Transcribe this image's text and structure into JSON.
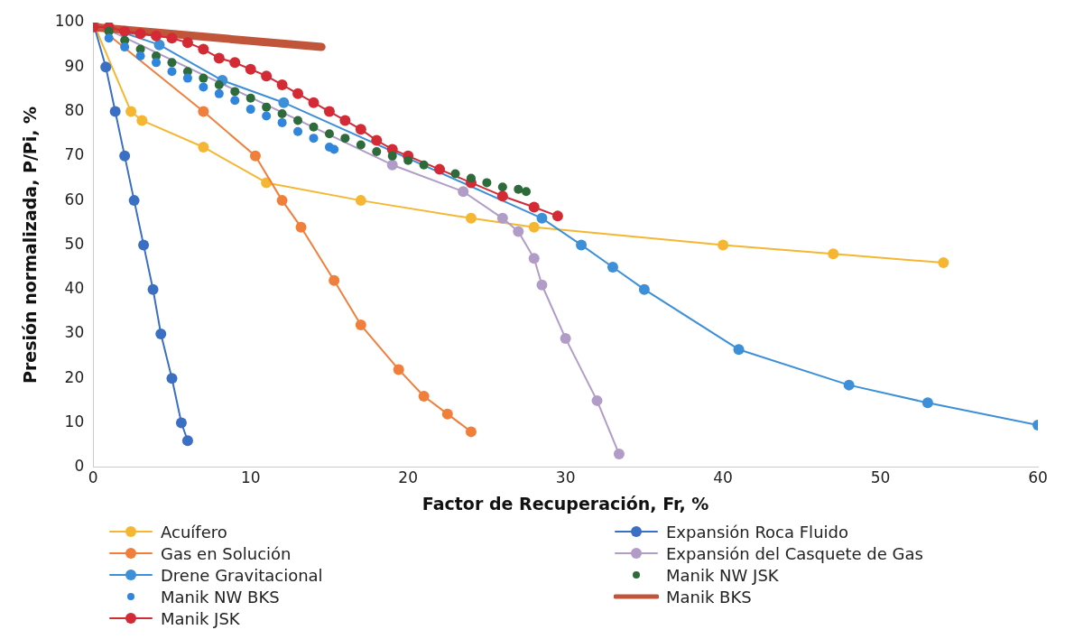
{
  "chart_data": {
    "type": "line",
    "xlabel": "Factor de Recuperación, Fr, %",
    "ylabel": "Presión normalizada, P/Pi, %",
    "xlim": [
      0,
      60
    ],
    "xticks": [
      0,
      10,
      20,
      30,
      40,
      50,
      60
    ],
    "ylim": [
      0,
      100
    ],
    "yticks": [
      0,
      10,
      20,
      30,
      40,
      50,
      60,
      70,
      80,
      90,
      100
    ],
    "grid": false,
    "legend": "bottom",
    "marker": "circle",
    "series": [
      {
        "name": "Acuífero",
        "color": "#f5b731",
        "x": [
          0,
          2.4,
          3.1,
          7,
          11,
          17,
          24,
          28,
          40,
          47,
          54
        ],
        "values": [
          100,
          80,
          78,
          72,
          64,
          60,
          56,
          54,
          50,
          48,
          46
        ]
      },
      {
        "name": "Expansión Roca Fluido",
        "color": "#3a6fc4",
        "x": [
          0,
          0.8,
          1.4,
          2,
          2.6,
          3.2,
          3.8,
          4.3,
          5,
          5.6,
          6
        ],
        "values": [
          100,
          90,
          80,
          70,
          60,
          50,
          40,
          30,
          20,
          10,
          6
        ]
      },
      {
        "name": "Gas en Solución",
        "color": "#f07f3c",
        "x": [
          0,
          7,
          10.3,
          12,
          13.2,
          15.3,
          17,
          19.4,
          21,
          22.5,
          24
        ],
        "values": [
          100,
          80,
          70,
          60,
          54,
          42,
          32,
          22,
          16,
          12,
          8
        ]
      },
      {
        "name": "Expansión del Casquete de Gas",
        "color": "#b19cc8",
        "x": [
          0,
          19,
          23.5,
          26,
          27,
          28,
          28.5,
          30,
          32,
          33.4
        ],
        "values": [
          100,
          68,
          62,
          56,
          53,
          47,
          41,
          29,
          15,
          3
        ]
      },
      {
        "name": "Drene Gravitacional",
        "color": "#3d8fd8",
        "x": [
          0,
          4.2,
          8.2,
          12.1,
          28.5,
          31,
          33,
          35,
          41,
          48,
          53,
          60
        ],
        "values": [
          100,
          95,
          87,
          82,
          56,
          50,
          45,
          40,
          26.5,
          18.5,
          14.5,
          9.5
        ]
      },
      {
        "name": "Manik NW JSK",
        "color": "#2e6b3a",
        "type": "scatter",
        "x": [
          1,
          2,
          3,
          4,
          5,
          6,
          7,
          8,
          9,
          10,
          11,
          12,
          13,
          14,
          15,
          16,
          17,
          18,
          19,
          20,
          21,
          23,
          24,
          25,
          26,
          27,
          27.5
        ],
        "values": [
          98,
          96,
          94,
          92.5,
          91,
          89,
          87.5,
          86,
          84.5,
          83,
          81,
          79.5,
          78,
          76.5,
          75,
          74,
          72.5,
          71,
          70,
          69,
          68,
          66,
          65,
          64,
          63,
          62.5,
          62
        ]
      },
      {
        "name": "Manik NW BKS",
        "color": "#2f86dc",
        "type": "scatter",
        "x": [
          1,
          2,
          3,
          4,
          5,
          6,
          7,
          8,
          9,
          10,
          11,
          12,
          13,
          14,
          15,
          15.3
        ],
        "values": [
          96.5,
          94.5,
          92.5,
          91,
          89,
          87.5,
          85.5,
          84,
          82.5,
          80.5,
          79,
          77.5,
          75.5,
          74,
          72,
          71.5
        ]
      },
      {
        "name": "Manik BKS",
        "color": "#c0553a",
        "marker": "none",
        "x": [
          0,
          14.5
        ],
        "values": [
          99,
          94.5
        ]
      },
      {
        "name": "Manik JSK",
        "color": "#d42a35",
        "x": [
          0,
          1,
          2,
          3,
          4,
          5,
          6,
          7,
          8,
          9,
          10,
          11,
          12,
          13,
          14,
          15,
          16,
          17,
          18,
          19,
          20,
          22,
          24,
          26,
          28,
          29.5
        ],
        "values": [
          99,
          99,
          98,
          97.5,
          97,
          96.5,
          95.5,
          94,
          92,
          91,
          89.5,
          88,
          86,
          84,
          82,
          80,
          78,
          76,
          73.5,
          71.5,
          70,
          67,
          64,
          61,
          58.5,
          56.5
        ]
      }
    ]
  }
}
